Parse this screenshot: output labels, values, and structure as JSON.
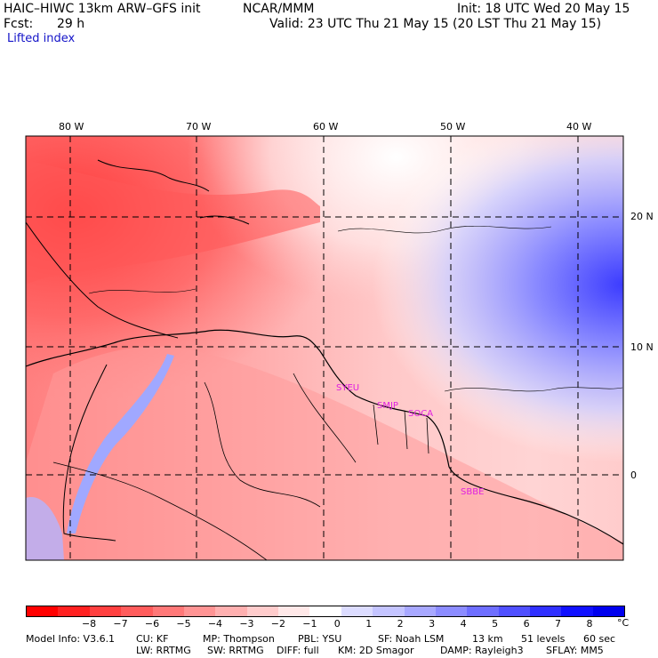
{
  "header": {
    "model_title": "HAIC–HIWC 13km ARW–GFS init",
    "org": "NCAR/MMM",
    "fcst_label": "Fcst:",
    "fcst_value": "29 h",
    "init": "Init: 18 UTC Wed 20 May 15",
    "valid": "Valid: 23 UTC Thu 21 May 15 (20 LST Thu 21 May 15)",
    "field": "Lifted index"
  },
  "map": {
    "lon_labels": [
      "80 W",
      "70 W",
      "60 W",
      "50 W",
      "40 W"
    ],
    "lat_labels": [
      "20 N",
      "10 N",
      "0"
    ],
    "stations": [
      "SYEU",
      "SMJP",
      "SOCA",
      "SBBE"
    ],
    "colors": {
      "land_border": "#000000",
      "grid": "#000000",
      "station": "#e020e0"
    }
  },
  "colorbar": {
    "labels": [
      "−8",
      "−7",
      "−6",
      "−5",
      "−4",
      "−3",
      "−2",
      "−1",
      "0",
      "1",
      "2",
      "3",
      "4",
      "5",
      "6",
      "7",
      "8"
    ],
    "unit": "°C",
    "colors": [
      "#ff0000",
      "#ff2020",
      "#ff4040",
      "#ff5c5c",
      "#ff7878",
      "#ff9494",
      "#ffb0b0",
      "#ffcccc",
      "#ffe8e8",
      "#ffffff",
      "#dcdcff",
      "#c4c4ff",
      "#a8a8ff",
      "#8c8cff",
      "#6e6eff",
      "#5050ff",
      "#3030ff",
      "#1010ff",
      "#0000ee"
    ]
  },
  "model_info": {
    "line1": {
      "model": "Model Info: V3.6.1",
      "cu": "CU: KF",
      "mp": "MP: Thompson",
      "pbl": "PBL: YSU",
      "sf": "SF: Noah LSM",
      "res": "13 km",
      "levels": "51 levels",
      "dt": "60 sec"
    },
    "line2": {
      "lw": "LW: RRTMG",
      "sw": "SW: RRTMG",
      "diff": "DIFF: full",
      "km": "KM: 2D Smagor",
      "damp": "DAMP: Rayleigh3",
      "sflay": "SFLAY: MM5"
    }
  }
}
